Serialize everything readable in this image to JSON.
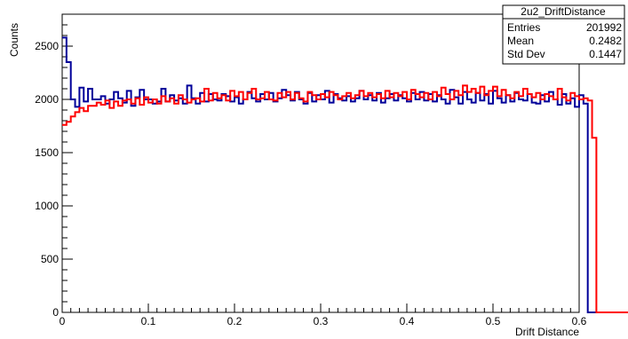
{
  "chart_data": {
    "type": "histogram",
    "title": "",
    "xlabel": "Drift Distance",
    "ylabel": "Counts",
    "xlim": [
      0,
      0.6
    ],
    "ylim": [
      0,
      2800
    ],
    "x_ticks": [
      0,
      0.1,
      0.2,
      0.3,
      0.4,
      0.5,
      0.6
    ],
    "x_tick_labels": [
      "0",
      "0.1",
      "0.2",
      "0.3",
      "0.4",
      "0.5",
      "0.6"
    ],
    "y_ticks": [
      0,
      500,
      1000,
      1500,
      2000,
      2500
    ],
    "y_tick_labels": [
      "0",
      "500",
      "1000",
      "1500",
      "2000",
      "2500"
    ],
    "bin_edges_start": 0,
    "bin_width": 0.005,
    "series": [
      {
        "color": "#000099",
        "values": [
          2580,
          2350,
          2000,
          1930,
          2110,
          1980,
          2100,
          2000,
          2000,
          2030,
          1960,
          2000,
          2070,
          2010,
          1970,
          2080,
          1940,
          2020,
          2090,
          2000,
          2000,
          1960,
          1980,
          2100,
          1980,
          2040,
          1990,
          2010,
          1960,
          2130,
          2010,
          1960,
          2060,
          1980,
          2050,
          2000,
          1990,
          2050,
          2030,
          1980,
          2020,
          1960,
          2000,
          2070,
          2010,
          1980,
          2050,
          2000,
          2060,
          1980,
          2010,
          2090,
          2040,
          1990,
          2070,
          2000,
          1960,
          2060,
          1980,
          2040,
          2000,
          2080,
          1970,
          2050,
          2010,
          1990,
          2030,
          1980,
          2010,
          2080,
          2000,
          2040,
          1990,
          2060,
          1970,
          2010,
          2050,
          1990,
          2040,
          2010,
          1980,
          2060,
          2000,
          2070,
          1990,
          2050,
          1980,
          2040,
          2000,
          1960,
          2090,
          2020,
          1960,
          2070,
          2000,
          1970,
          2060,
          1990,
          2050,
          1960,
          2080,
          2010,
          1970,
          2040,
          1980,
          2060,
          2000,
          1990,
          2050,
          1970,
          1960,
          2040,
          1980,
          2070,
          2000,
          1950,
          2050,
          1960,
          2010,
          1930,
          2040,
          1960,
          0,
          0,
          0,
          0,
          0,
          0,
          0,
          0,
          0,
          0,
          0,
          0,
          0,
          0,
          0,
          0,
          0,
          0,
          0,
          0
        ]
      },
      {
        "color": "#ff0000",
        "values": [
          1760,
          1790,
          1840,
          1880,
          1920,
          1890,
          1940,
          1940,
          1970,
          1950,
          1990,
          1920,
          1980,
          1940,
          1990,
          2000,
          1960,
          2010,
          1950,
          2020,
          1970,
          2000,
          1960,
          2030,
          1980,
          2010,
          1960,
          2040,
          2000,
          1970,
          2000,
          2010,
          1980,
          2100,
          1990,
          2060,
          2010,
          2040,
          1990,
          2080,
          2030,
          2070,
          2000,
          2060,
          2100,
          2000,
          2010,
          2070,
          2000,
          1990,
          2060,
          2020,
          2070,
          2000,
          2060,
          2010,
          1980,
          2070,
          2040,
          2000,
          2050,
          2020,
          2070,
          2040,
          2000,
          2030,
          2060,
          2010,
          2040,
          2080,
          2030,
          2060,
          2020,
          2050,
          2010,
          2080,
          2020,
          2060,
          2030,
          2070,
          2000,
          2090,
          2050,
          2020,
          2060,
          2000,
          2070,
          2030,
          2110,
          2050,
          2000,
          2080,
          2040,
          2130,
          2070,
          2100,
          2060,
          2120,
          2040,
          2080,
          2120,
          2030,
          2090,
          2040,
          2010,
          2070,
          2030,
          2100,
          2050,
          2020,
          2060,
          2000,
          2050,
          2030,
          2000,
          2100,
          2020,
          1990,
          2060,
          2030,
          2000,
          2010,
          1990,
          1640,
          0,
          0,
          0,
          0,
          0,
          0,
          0,
          0,
          0,
          0,
          0,
          0,
          0,
          0,
          0,
          0,
          0,
          0,
          0
        ]
      }
    ],
    "stats_box": {
      "name": "2u2_DriftDistance",
      "rows": [
        {
          "label": "Entries",
          "value": "201992"
        },
        {
          "label": "Mean",
          "value": "0.2482"
        },
        {
          "label": "Std Dev",
          "value": "0.1447"
        }
      ]
    }
  }
}
